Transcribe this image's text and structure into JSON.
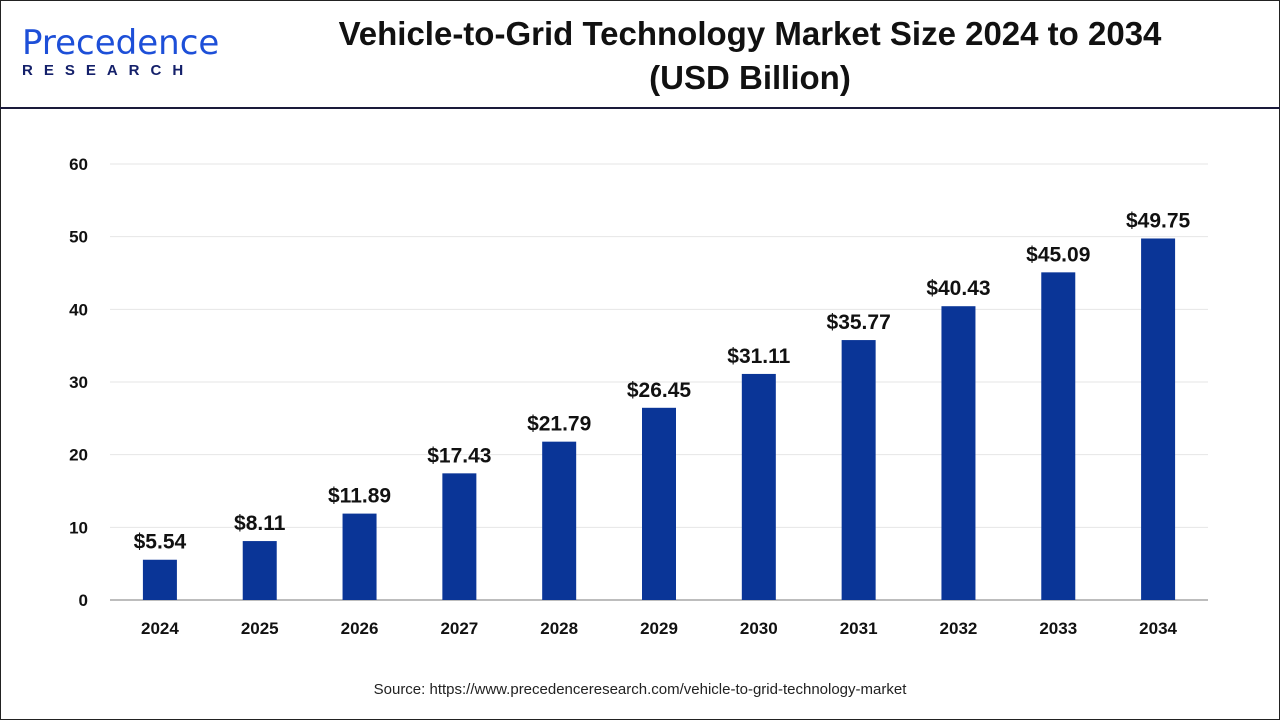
{
  "header": {
    "logo_main": "Precedence",
    "logo_sub": "RESEARCH",
    "title_line1": "Vehicle-to-Grid Technology Market Size 2024 to 2034",
    "title_line2": "(USD Billion)"
  },
  "source": "Source: https://www.precedenceresearch.com/vehicle-to-grid-technology-market",
  "chart_data": {
    "type": "bar",
    "title": "Vehicle-to-Grid Technology Market Size 2024 to 2034 (USD Billion)",
    "categories": [
      "2024",
      "2025",
      "2026",
      "2027",
      "2028",
      "2029",
      "2030",
      "2031",
      "2032",
      "2033",
      "2034"
    ],
    "values": [
      5.54,
      8.11,
      11.89,
      17.43,
      21.79,
      26.45,
      31.11,
      35.77,
      40.43,
      45.09,
      49.75
    ],
    "data_labels": [
      "$5.54",
      "$8.11",
      "$11.89",
      "$17.43",
      "$21.79",
      "$26.45",
      "$31.11",
      "$35.77",
      "$40.43",
      "$45.09",
      "$49.75"
    ],
    "yticks": [
      "0",
      "10",
      "20",
      "30",
      "40",
      "50",
      "60"
    ],
    "ylim": [
      0,
      60
    ],
    "grid": true,
    "bar_color": "#0a3597",
    "xlabel": "",
    "ylabel": ""
  }
}
